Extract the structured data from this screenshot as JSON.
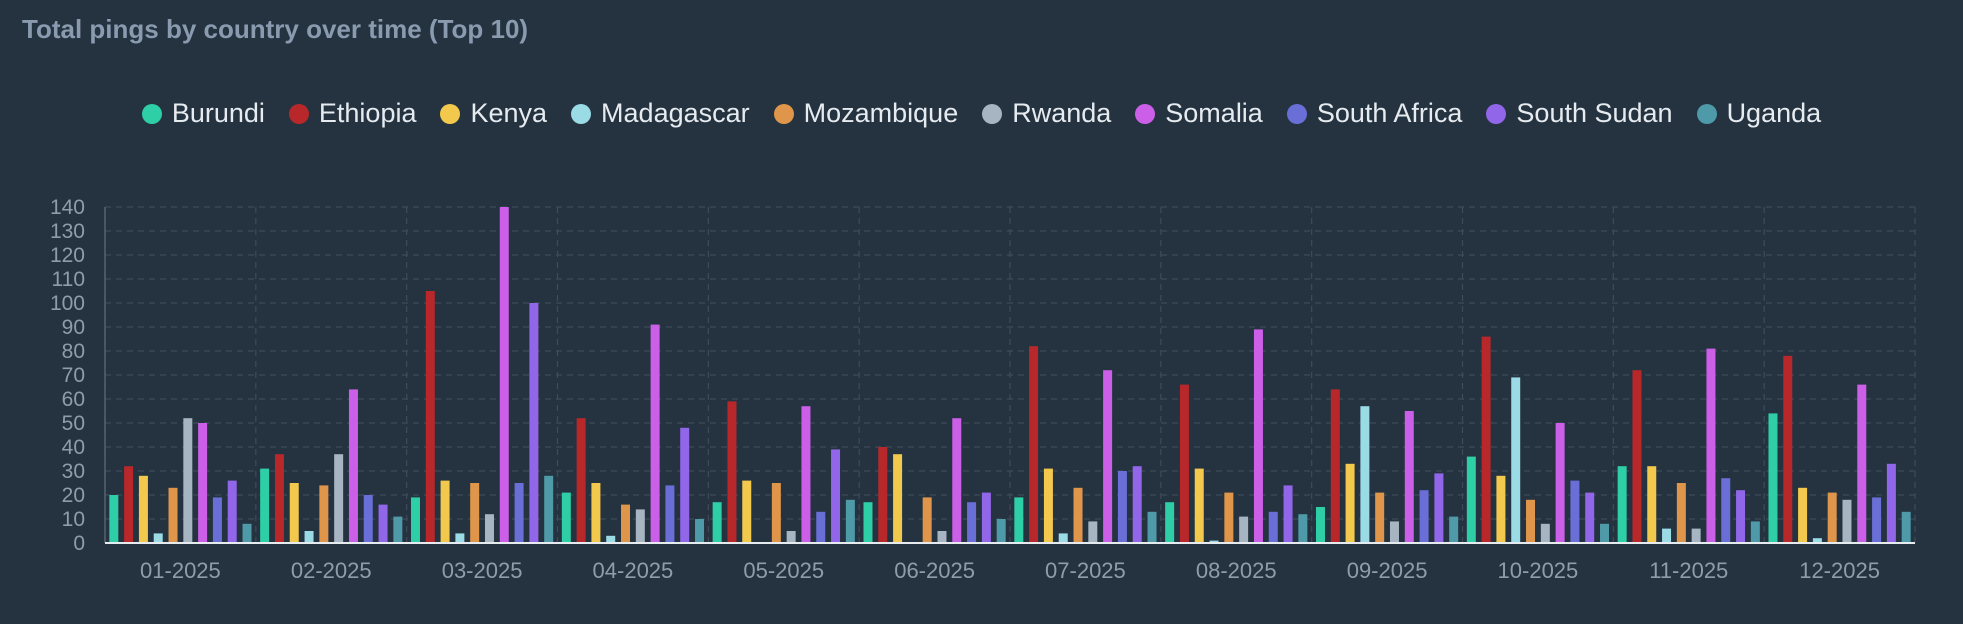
{
  "chart_data": {
    "type": "bar",
    "title": "Total pings by country over time (Top 10)",
    "xlabel": "",
    "ylabel": "",
    "ylim": [
      0,
      140
    ],
    "yticks": [
      0,
      10,
      20,
      30,
      40,
      50,
      60,
      70,
      80,
      90,
      100,
      110,
      120,
      130,
      140
    ],
    "grid": true,
    "legend_position": "top-center",
    "categories": [
      "01-2025",
      "02-2025",
      "03-2025",
      "04-2025",
      "05-2025",
      "06-2025",
      "07-2025",
      "08-2025",
      "09-2025",
      "10-2025",
      "11-2025",
      "12-2025"
    ],
    "series": [
      {
        "name": "Burundi",
        "color": "#2ecfa6",
        "values": [
          20,
          31,
          19,
          21,
          17,
          17,
          19,
          17,
          15,
          36,
          32,
          54
        ]
      },
      {
        "name": "Ethiopia",
        "color": "#b8282b",
        "values": [
          32,
          37,
          105,
          52,
          59,
          40,
          82,
          66,
          64,
          86,
          72,
          78
        ]
      },
      {
        "name": "Kenya",
        "color": "#f2c94c",
        "values": [
          28,
          25,
          26,
          25,
          26,
          37,
          31,
          31,
          33,
          28,
          32,
          23
        ]
      },
      {
        "name": "Madagascar",
        "color": "#9adbe6",
        "values": [
          4,
          5,
          4,
          3,
          0,
          0,
          4,
          1,
          57,
          69,
          6,
          2
        ]
      },
      {
        "name": "Mozambique",
        "color": "#e0964a",
        "values": [
          23,
          24,
          25,
          16,
          25,
          19,
          23,
          21,
          21,
          18,
          25,
          21
        ]
      },
      {
        "name": "Rwanda",
        "color": "#a7b4c2",
        "values": [
          52,
          37,
          12,
          14,
          5,
          5,
          9,
          11,
          9,
          8,
          6,
          18
        ]
      },
      {
        "name": "Somalia",
        "color": "#cc5fe8",
        "values": [
          50,
          64,
          140,
          91,
          57,
          52,
          72,
          89,
          55,
          50,
          81,
          66
        ]
      },
      {
        "name": "South Africa",
        "color": "#6a6fd8",
        "values": [
          19,
          20,
          25,
          24,
          13,
          17,
          30,
          13,
          22,
          26,
          27,
          19
        ]
      },
      {
        "name": "South Sudan",
        "color": "#9266e8",
        "values": [
          26,
          16,
          100,
          48,
          39,
          21,
          32,
          24,
          29,
          21,
          22,
          33
        ]
      },
      {
        "name": "Uganda",
        "color": "#4e9aa8",
        "values": [
          8,
          11,
          28,
          10,
          18,
          10,
          13,
          12,
          11,
          8,
          9,
          13
        ]
      }
    ]
  }
}
